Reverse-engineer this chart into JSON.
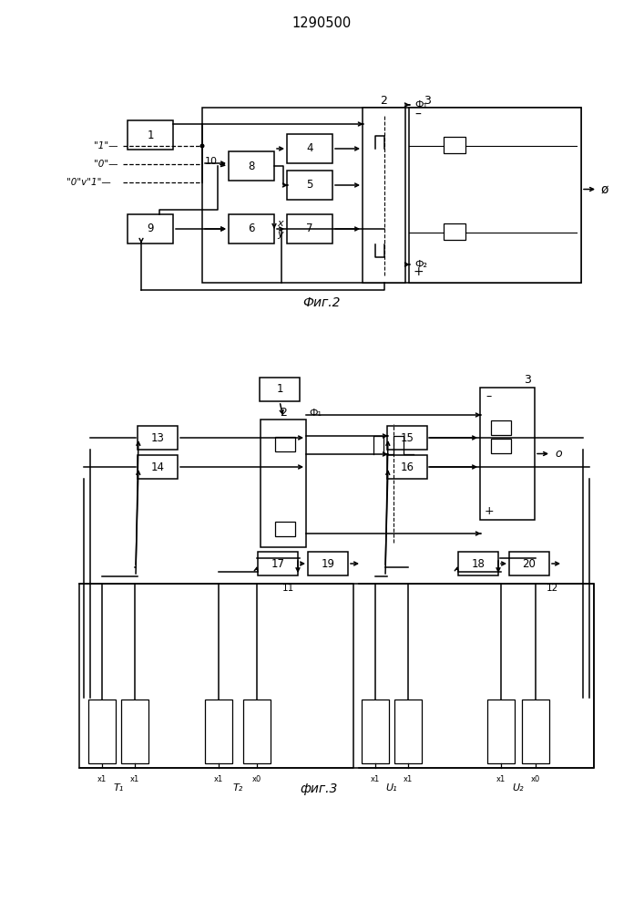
{
  "title": "1290500",
  "fig2_caption": "Фиг.2",
  "fig3_caption": "фиг.3",
  "lw": 1.1
}
